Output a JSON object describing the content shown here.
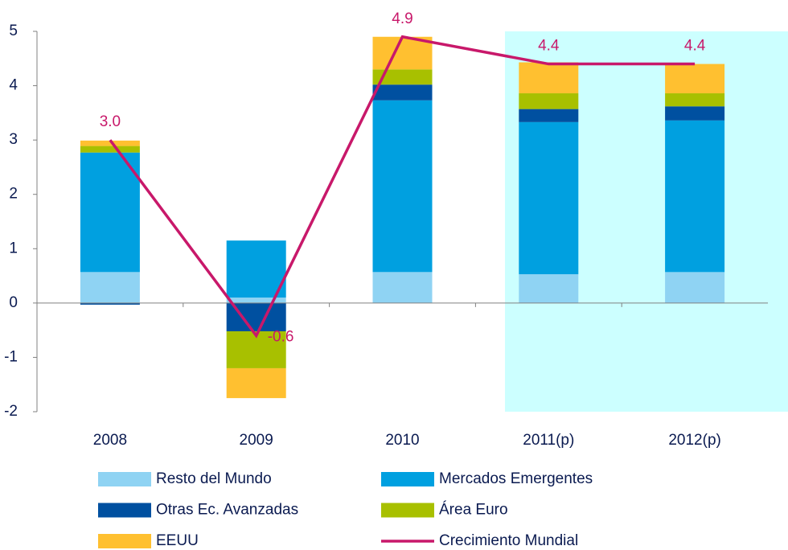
{
  "chart_data": {
    "type": "bar",
    "stacked": true,
    "categories": [
      "2008",
      "2009",
      "2010",
      "2011(p)",
      "2012(p)"
    ],
    "series": [
      {
        "name": "Resto del Mundo",
        "color": "#8fd3f3",
        "values": [
          0.57,
          0.1,
          0.57,
          0.53,
          0.57
        ]
      },
      {
        "name": "Mercados Emergentes",
        "color": "#00a0e0",
        "values": [
          2.2,
          1.05,
          3.16,
          2.8,
          2.79
        ]
      },
      {
        "name": "Otras Ec. Avanzadas",
        "color": "#0050a0",
        "values": [
          -0.03,
          -0.52,
          0.29,
          0.24,
          0.26
        ]
      },
      {
        "name": "Área Euro",
        "color": "#a8c000",
        "values": [
          0.12,
          -0.68,
          0.28,
          0.29,
          0.24
        ]
      },
      {
        "name": "EEUU",
        "color": "#ffc030",
        "values": [
          0.1,
          -0.55,
          0.6,
          0.57,
          0.54
        ]
      },
      {
        "name": "Crecimiento Mundial",
        "type": "line",
        "color": "#c8186a",
        "values": [
          3.0,
          -0.6,
          4.9,
          4.4,
          4.4
        ],
        "value_labels": [
          "3.0",
          "-0.6",
          "4.9",
          "4.4",
          "4.4"
        ]
      }
    ],
    "ylim": [
      -2,
      5
    ],
    "yticks": [
      -2,
      -1,
      0,
      1,
      2,
      3,
      4,
      5
    ]
  }
}
